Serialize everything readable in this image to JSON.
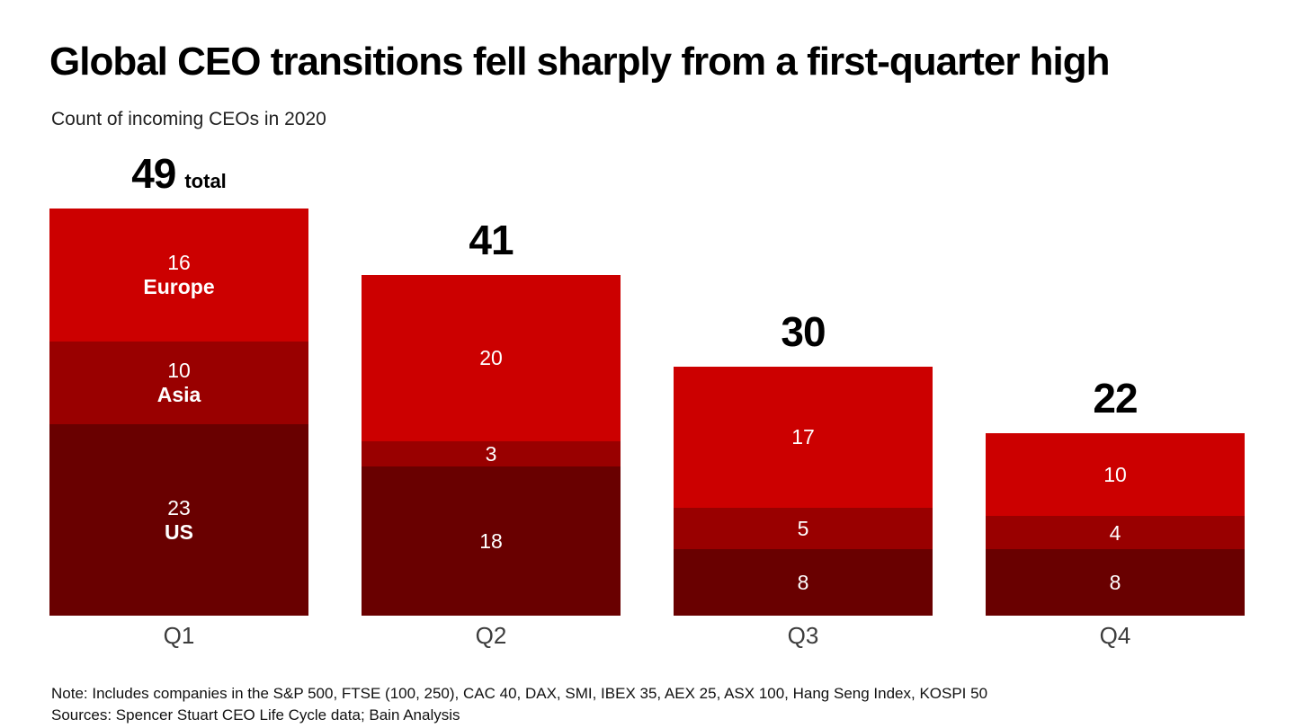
{
  "chart": {
    "title": "Global CEO transitions fell sharply from a first-quarter high",
    "subtitle": "Count of incoming CEOs in 2020"
  },
  "chart_data": {
    "type": "bar",
    "stacked": true,
    "orientation": "vertical",
    "title": "Global CEO transitions fell sharply from a first-quarter high",
    "subtitle": "Count of incoming CEOs in 2020",
    "categories": [
      "Q1",
      "Q2",
      "Q3",
      "Q4"
    ],
    "series": [
      {
        "name": "Europe",
        "color": "#CC0000",
        "values": [
          16,
          20,
          17,
          10
        ]
      },
      {
        "name": "Asia",
        "color": "#990000",
        "values": [
          10,
          3,
          5,
          4
        ]
      },
      {
        "name": "US",
        "color": "#690000",
        "values": [
          23,
          18,
          8,
          8
        ]
      }
    ],
    "totals": [
      49,
      41,
      30,
      22
    ],
    "total_suffix": "total",
    "segment_names_shown_on_first_bar_only": true,
    "value_label_color": "#FFFFFF",
    "grid": false,
    "legend": "inline-first-bar",
    "xlabel": "",
    "ylabel": ""
  },
  "footer": {
    "note": "Note: Includes companies in the S&P 500, FTSE (100, 250), CAC 40, DAX, SMI, IBEX 35, AEX 25, ASX 100, Hang Seng Index, KOSPI 50",
    "sources": "Sources: Spencer Stuart CEO Life Cycle data; Bain Analysis"
  }
}
